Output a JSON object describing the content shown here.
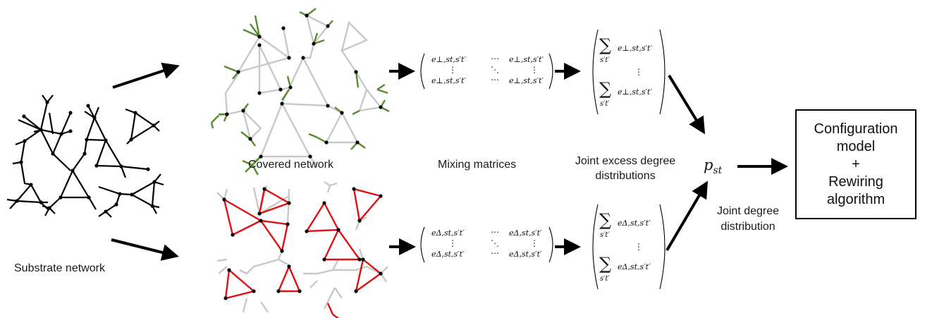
{
  "labels": {
    "substrate": "Substrate network",
    "covered": "Covered network",
    "mixing": "Mixing matrices",
    "joint_excess_line1": "Joint excess degree",
    "joint_excess_line2": "distributions",
    "joint_degree_line1": "Joint degree",
    "joint_degree_line2": "distribution",
    "pst": "p",
    "pst_sub": "st"
  },
  "box": {
    "line1": "Configuration",
    "line2": "model",
    "line3": "+",
    "line4": "Rewiring",
    "line5": "algorithm"
  },
  "matrices": {
    "top_entry": "e⊥,st,s′t′",
    "bottom_entry": "eΔ,st,s′t′",
    "hdots": "⋯",
    "vdots": "⋮",
    "ddots": "⋱"
  },
  "sums": {
    "sigma": "∑",
    "index": "s′t′",
    "top_entry": "e⊥,st,s′t′",
    "bottom_entry": "eΔ,st,s′t′",
    "vdots": "⋮"
  },
  "colors": {
    "substrate": "#000000",
    "tree_edges": "#5a8a2e",
    "triangle_edges": "#e01010",
    "inactive_edges": "#c8c8c8",
    "arrows": "#000000"
  }
}
